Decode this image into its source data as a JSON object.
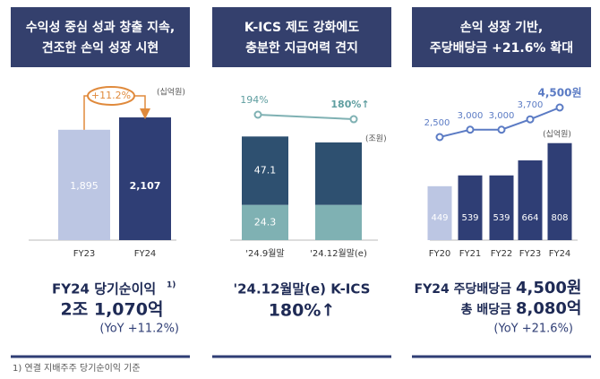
{
  "chart_data": [
    {
      "type": "bar",
      "header": [
        "수익성 중심 성과 창출 지속,",
        "견조한 손익 성장 시현"
      ],
      "unit": "(십억원)",
      "categories": [
        "FY23",
        "FY24"
      ],
      "values": [
        1895,
        2107
      ],
      "value_labels": [
        "1,895",
        "2,107"
      ],
      "colors": [
        "#bcc6e3",
        "#2f3e75"
      ],
      "annotation": "+11.2%",
      "summary": {
        "label": "FY24 당기순이익",
        "note": "1)",
        "value": "2조 1,070억",
        "change": "(YoY +11.2%)"
      }
    },
    {
      "type": "stacked_bar_line",
      "header": [
        "K-ICS 제도 강화에도",
        "충분한 지급여력 견지"
      ],
      "unit": "(조원)",
      "categories": [
        "'24.9월말",
        "'24.12월말(e)"
      ],
      "series": [
        {
          "color": "#7fb1b3",
          "values": [
            24.3,
            24.3
          ],
          "value_labels": [
            "24.3",
            null
          ]
        },
        {
          "color": "#2e5070",
          "values": [
            47.1,
            43
          ],
          "value_labels": [
            "47.1",
            null
          ]
        }
      ],
      "line": {
        "color": "#7fb1b3",
        "values": [
          194,
          180
        ],
        "value_labels": [
          "194%",
          "180%↑"
        ]
      },
      "summary": {
        "label": "'24.12월말(e) K-ICS",
        "value": "180%↑"
      }
    },
    {
      "type": "bar_line",
      "header": [
        "손익 성장 기반,",
        "주당배당금 +21.6% 확대"
      ],
      "unit": "(십억원)",
      "categories": [
        "FY20",
        "FY21",
        "FY22",
        "FY23",
        "FY24"
      ],
      "values": [
        449,
        539,
        539,
        664,
        808
      ],
      "colors": [
        "#bcc6e3",
        "#2f3e75",
        "#2f3e75",
        "#2f3e75",
        "#2f3e75"
      ],
      "line": {
        "color": "#5b7bc4",
        "values": [
          2500,
          3000,
          3000,
          3700,
          4500
        ],
        "value_labels": [
          "2,500",
          "3,000",
          "3,000",
          "3,700",
          "4,500원"
        ]
      },
      "summary": {
        "label": "FY24 주당배당금",
        "value": "4,500원",
        "label2": "총 배당금",
        "value2": "8,080억",
        "change": "(YoY +21.6%)"
      }
    }
  ],
  "footnote": "1) 연결 지배주주 당기순이익 기준"
}
